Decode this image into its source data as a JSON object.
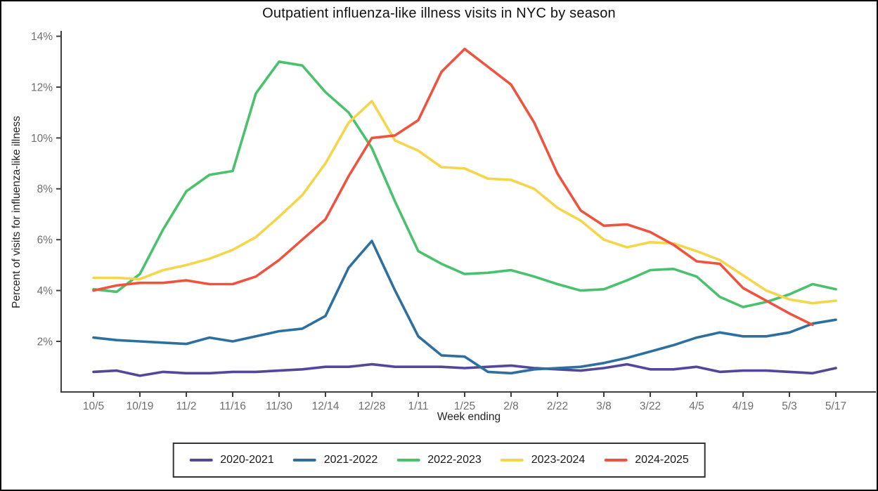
{
  "title": "Outpatient influenza-like illness visits in NYC by season",
  "chart_data": {
    "type": "line",
    "title": "Outpatient influenza-like illness visits in NYC by season",
    "xlabel": "Week ending",
    "ylabel": "Percent of visits for influenza-like illness",
    "x_categories": [
      "10/5",
      "10/12",
      "10/19",
      "10/26",
      "11/2",
      "11/9",
      "11/16",
      "11/23",
      "11/30",
      "12/7",
      "12/14",
      "12/21",
      "12/28",
      "1/4",
      "1/11",
      "1/18",
      "1/25",
      "2/1",
      "2/8",
      "2/15",
      "2/22",
      "3/1",
      "3/8",
      "3/15",
      "3/22",
      "3/29",
      "4/5",
      "4/12",
      "4/19",
      "4/26",
      "5/3",
      "5/10",
      "5/17"
    ],
    "x_tick_labels": [
      "10/5",
      "10/19",
      "11/2",
      "11/16",
      "11/30",
      "12/14",
      "12/28",
      "1/11",
      "1/25",
      "2/8",
      "2/22",
      "3/8",
      "3/22",
      "4/5",
      "4/19",
      "5/3",
      "5/17"
    ],
    "y_ticks": [
      2,
      4,
      6,
      8,
      10,
      12,
      14
    ],
    "y_tick_labels": [
      "2%",
      "4%",
      "6%",
      "8%",
      "10%",
      "12%",
      "14%"
    ],
    "ylim": [
      0,
      14.3
    ],
    "grid": false,
    "legend_position": "bottom",
    "axis_color": "#3f3f3f",
    "tick_label_color": "#6e6e6e",
    "series": [
      {
        "name": "2020-2021",
        "color": "#53479a",
        "values": [
          0.8,
          0.85,
          0.65,
          0.8,
          0.75,
          0.75,
          0.8,
          0.8,
          0.85,
          0.9,
          1.0,
          1.0,
          1.1,
          1.0,
          1.0,
          1.0,
          0.95,
          1.0,
          1.05,
          0.95,
          0.9,
          0.85,
          0.95,
          1.1,
          0.9,
          0.9,
          1.0,
          0.8,
          0.85,
          0.85,
          0.8,
          0.75,
          0.95
        ]
      },
      {
        "name": "2021-2022",
        "color": "#2d6f9f",
        "values": [
          2.15,
          2.05,
          2.0,
          1.95,
          1.9,
          2.15,
          2.0,
          2.2,
          2.4,
          2.5,
          3.0,
          4.9,
          5.95,
          4.0,
          2.2,
          1.45,
          1.4,
          0.8,
          0.75,
          0.9,
          0.95,
          1.0,
          1.15,
          1.35,
          1.6,
          1.85,
          2.15,
          2.35,
          2.2,
          2.2,
          2.35,
          2.7,
          2.85
        ]
      },
      {
        "name": "2022-2023",
        "color": "#4ac16d",
        "values": [
          4.05,
          3.95,
          4.65,
          6.4,
          7.9,
          8.55,
          8.7,
          11.75,
          13.0,
          12.85,
          11.8,
          11.0,
          9.6,
          7.5,
          5.55,
          5.05,
          4.65,
          4.7,
          4.8,
          4.55,
          4.25,
          4.0,
          4.05,
          4.4,
          4.8,
          4.85,
          4.55,
          3.75,
          3.35,
          3.55,
          3.85,
          4.25,
          4.05
        ]
      },
      {
        "name": "2023-2024",
        "color": "#f5d54a",
        "values": [
          4.5,
          4.5,
          4.45,
          4.8,
          5.0,
          5.25,
          5.6,
          6.1,
          6.9,
          7.75,
          9.0,
          10.6,
          11.45,
          9.9,
          9.5,
          8.85,
          8.8,
          8.4,
          8.35,
          8.0,
          7.25,
          6.75,
          6.0,
          5.7,
          5.9,
          5.85,
          5.55,
          5.2,
          4.6,
          4.0,
          3.65,
          3.5,
          3.6
        ]
      },
      {
        "name": "2024-2025",
        "color": "#ee5340",
        "values": [
          4.0,
          4.2,
          4.3,
          4.3,
          4.4,
          4.25,
          4.25,
          4.55,
          5.2,
          6.0,
          6.8,
          8.5,
          10.0,
          10.1,
          10.7,
          12.6,
          13.5,
          12.8,
          12.1,
          10.6,
          8.6,
          7.15,
          6.55,
          6.6,
          6.3,
          5.8,
          5.15,
          5.05,
          4.1,
          3.6,
          3.1,
          2.65,
          null
        ]
      }
    ]
  }
}
